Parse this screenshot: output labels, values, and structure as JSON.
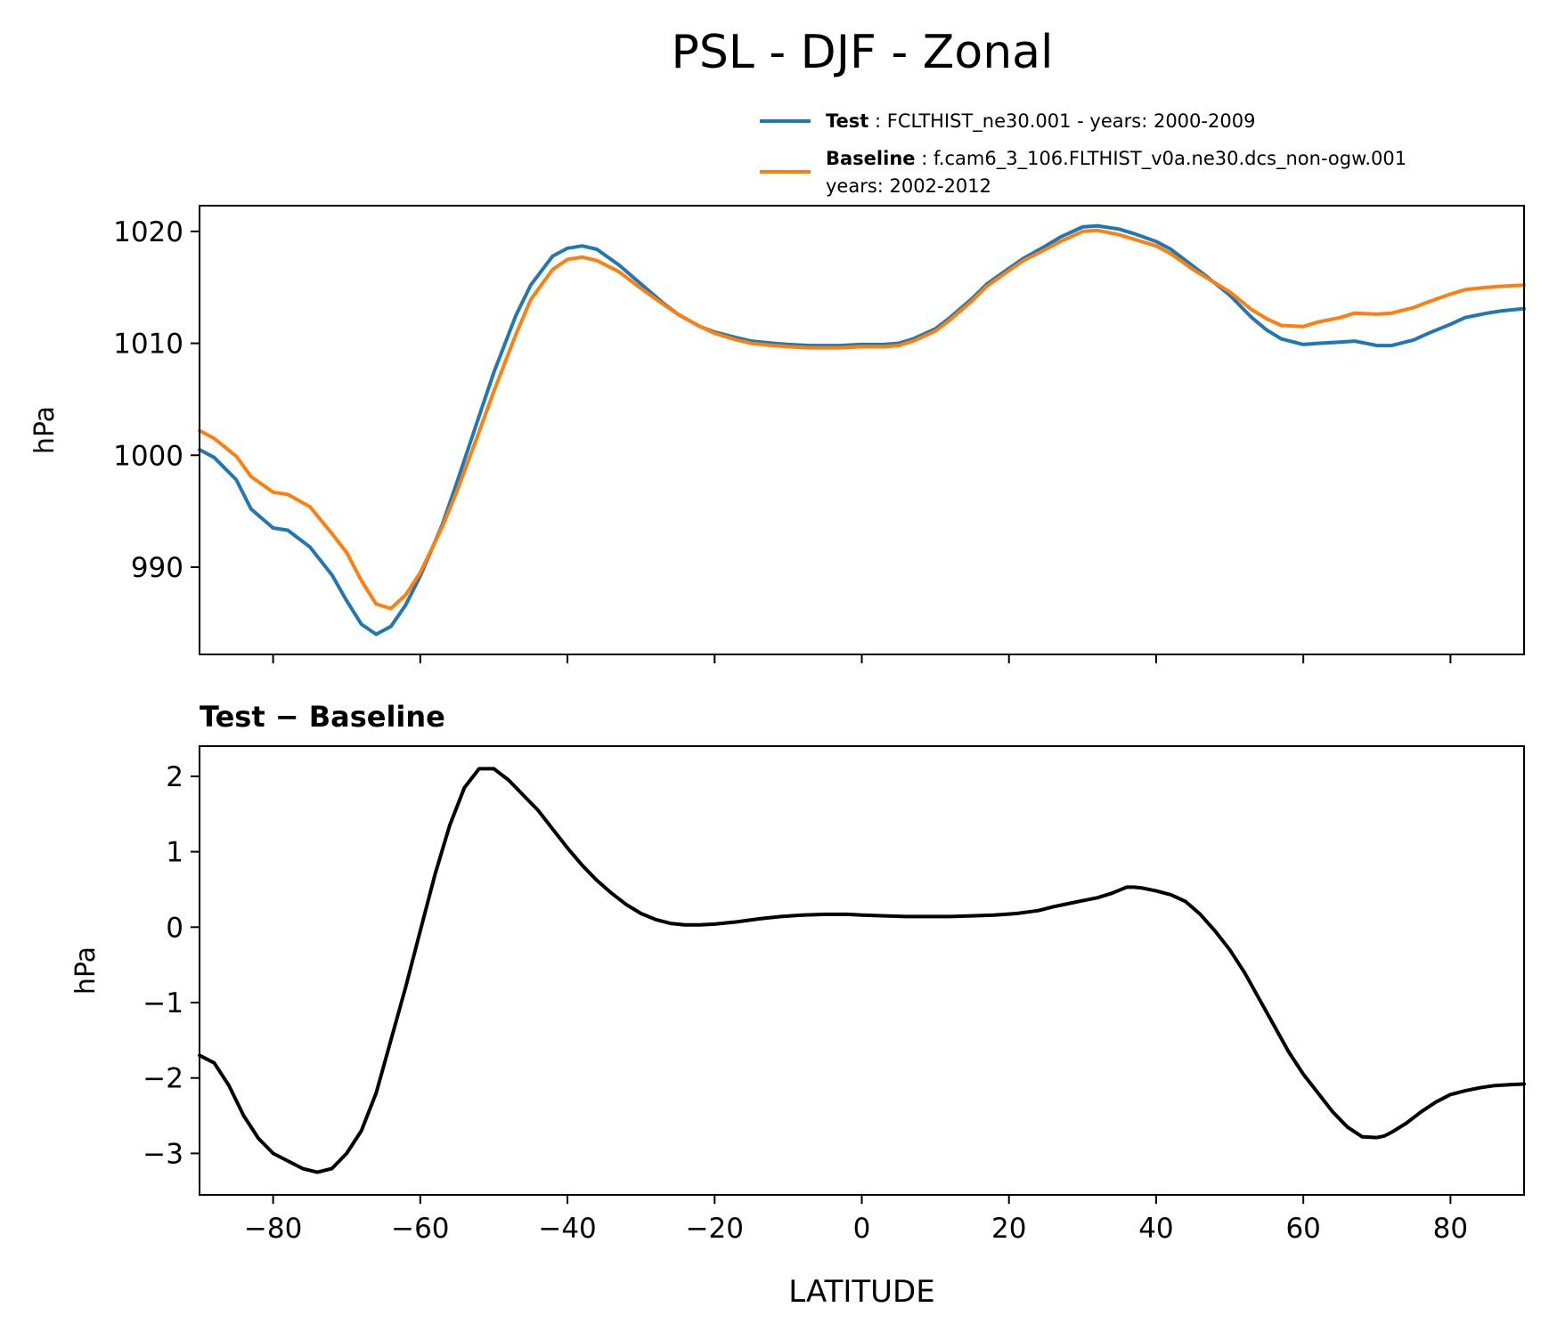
{
  "figure": {
    "title": "PSL - DJF - Zonal",
    "xlabel": "LATITUDE"
  },
  "colors": {
    "test": "#1f77b4",
    "baseline": "#ff7f0e",
    "diff": "#000000"
  },
  "legend": {
    "test_name": "Test",
    "test_desc": ": FCLTHIST_ne30.001 - years: 2000-2009",
    "baseline_name": "Baseline",
    "baseline_desc": ": f.cam6_3_106.FLTHIST_v0a.ne30.dcs_non-ogw.001",
    "baseline_desc2": "years: 2002-2012"
  },
  "chart_data": [
    {
      "type": "line",
      "title": "",
      "xlabel": "",
      "ylabel": "hPa",
      "xlim": [
        -90,
        90
      ],
      "ylim": [
        982.2,
        1022.3
      ],
      "xticks": [
        -80,
        -60,
        -40,
        -20,
        0,
        20,
        40,
        60,
        80
      ],
      "yticks": [
        990,
        1000,
        1010,
        1020
      ],
      "ytick_labels": [
        "990",
        "1000",
        "1010",
        "1020"
      ],
      "legend_position": "top-right, above axes",
      "x": [
        -90,
        -88,
        -85,
        -83,
        -80,
        -78,
        -75,
        -72,
        -70,
        -68,
        -66,
        -64,
        -62,
        -60,
        -57,
        -55,
        -52,
        -50,
        -47,
        -45,
        -42,
        -40,
        -38,
        -36,
        -33,
        -30,
        -27,
        -25,
        -22,
        -20,
        -17,
        -15,
        -12,
        -10,
        -7,
        -5,
        -3,
        0,
        3,
        5,
        7,
        10,
        12,
        15,
        17,
        20,
        22,
        25,
        27,
        30,
        32,
        35,
        37,
        40,
        42,
        45,
        47,
        50,
        53,
        55,
        57,
        60,
        62,
        65,
        67,
        70,
        72,
        75,
        77,
        80,
        82,
        85,
        87,
        90
      ],
      "series": [
        {
          "name": "Test",
          "values": [
            1000.5,
            999.8,
            997.8,
            995.2,
            993.5,
            993.3,
            991.8,
            989.3,
            987.0,
            984.9,
            984.0,
            984.7,
            986.6,
            989.2,
            993.8,
            997.6,
            1003.5,
            1007.4,
            1012.5,
            1015.2,
            1017.8,
            1018.5,
            1018.7,
            1018.4,
            1017.0,
            1015.3,
            1013.6,
            1012.6,
            1011.5,
            1011.0,
            1010.5,
            1010.2,
            1010.0,
            1009.9,
            1009.8,
            1009.8,
            1009.8,
            1009.9,
            1009.9,
            1010.0,
            1010.4,
            1011.3,
            1012.3,
            1014.0,
            1015.3,
            1016.7,
            1017.6,
            1018.7,
            1019.5,
            1020.4,
            1020.5,
            1020.2,
            1019.8,
            1019.1,
            1018.4,
            1016.9,
            1015.9,
            1014.3,
            1012.3,
            1011.2,
            1010.4,
            1009.9,
            1010.0,
            1010.1,
            1010.2,
            1009.8,
            1009.8,
            1010.3,
            1010.9,
            1011.7,
            1012.3,
            1012.7,
            1012.9,
            1013.1
          ]
        },
        {
          "name": "Baseline",
          "values": [
            1002.2,
            1001.5,
            999.9,
            998.1,
            996.7,
            996.5,
            995.4,
            993.0,
            991.3,
            988.8,
            986.7,
            986.3,
            987.5,
            989.5,
            993.6,
            996.8,
            1002.1,
            1005.7,
            1010.8,
            1013.9,
            1016.6,
            1017.5,
            1017.7,
            1017.4,
            1016.4,
            1014.9,
            1013.5,
            1012.6,
            1011.5,
            1010.9,
            1010.3,
            1010.0,
            1009.8,
            1009.7,
            1009.6,
            1009.6,
            1009.6,
            1009.7,
            1009.7,
            1009.8,
            1010.2,
            1011.1,
            1012.1,
            1013.8,
            1015.1,
            1016.5,
            1017.4,
            1018.4,
            1019.1,
            1020.0,
            1020.1,
            1019.7,
            1019.3,
            1018.7,
            1018.0,
            1016.6,
            1015.8,
            1014.6,
            1013.0,
            1012.2,
            1011.6,
            1011.5,
            1011.9,
            1012.3,
            1012.7,
            1012.6,
            1012.7,
            1013.2,
            1013.7,
            1014.4,
            1014.8,
            1015.0,
            1015.1,
            1015.2
          ]
        }
      ]
    },
    {
      "type": "line",
      "title": "Test − Baseline",
      "xlabel": "LATITUDE",
      "ylabel": "hPa",
      "xlim": [
        -90,
        90
      ],
      "ylim": [
        -3.55,
        2.4
      ],
      "xticks": [
        -80,
        -60,
        -40,
        -20,
        0,
        20,
        40,
        60,
        80
      ],
      "xtick_labels": [
        "−80",
        "−60",
        "−40",
        "−20",
        "0",
        "20",
        "40",
        "60",
        "80"
      ],
      "yticks": [
        -3,
        -2,
        -1,
        0,
        1,
        2
      ],
      "ytick_labels": [
        "−3",
        "−2",
        "−1",
        "0",
        "1",
        "2"
      ],
      "x": [
        -90,
        -88,
        -86,
        -84,
        -82,
        -80,
        -78,
        -76,
        -74,
        -72,
        -70,
        -68,
        -66,
        -64,
        -62,
        -60,
        -58,
        -56,
        -54,
        -52,
        -50,
        -48,
        -46,
        -44,
        -42,
        -40,
        -38,
        -36,
        -34,
        -32,
        -30,
        -28,
        -26,
        -24,
        -22,
        -20,
        -17,
        -14,
        -11,
        -8,
        -5,
        -2,
        0,
        3,
        6,
        9,
        12,
        15,
        18,
        21,
        24,
        26,
        28,
        30,
        32,
        34,
        35,
        36,
        37,
        38,
        40,
        42,
        44,
        46,
        48,
        50,
        52,
        54,
        56,
        58,
        60,
        62,
        64,
        66,
        68,
        70,
        71,
        72,
        73,
        74,
        76,
        78,
        80,
        82,
        84,
        86,
        88,
        90
      ],
      "series": [
        {
          "name": "Test − Baseline",
          "values": [
            -1.7,
            -1.8,
            -2.1,
            -2.5,
            -2.8,
            -3.0,
            -3.1,
            -3.2,
            -3.25,
            -3.2,
            -3.0,
            -2.7,
            -2.2,
            -1.5,
            -0.8,
            -0.05,
            0.7,
            1.35,
            1.85,
            2.1,
            2.1,
            1.95,
            1.75,
            1.55,
            1.3,
            1.05,
            0.82,
            0.62,
            0.45,
            0.3,
            0.18,
            0.1,
            0.05,
            0.03,
            0.03,
            0.04,
            0.07,
            0.11,
            0.14,
            0.16,
            0.17,
            0.17,
            0.16,
            0.15,
            0.14,
            0.14,
            0.14,
            0.15,
            0.16,
            0.18,
            0.22,
            0.27,
            0.31,
            0.35,
            0.39,
            0.45,
            0.49,
            0.53,
            0.53,
            0.52,
            0.48,
            0.43,
            0.34,
            0.17,
            -0.05,
            -0.3,
            -0.6,
            -0.95,
            -1.3,
            -1.65,
            -1.95,
            -2.2,
            -2.45,
            -2.65,
            -2.78,
            -2.79,
            -2.77,
            -2.72,
            -2.66,
            -2.6,
            -2.45,
            -2.32,
            -2.22,
            -2.17,
            -2.13,
            -2.1,
            -2.09,
            -2.08
          ]
        }
      ]
    }
  ]
}
